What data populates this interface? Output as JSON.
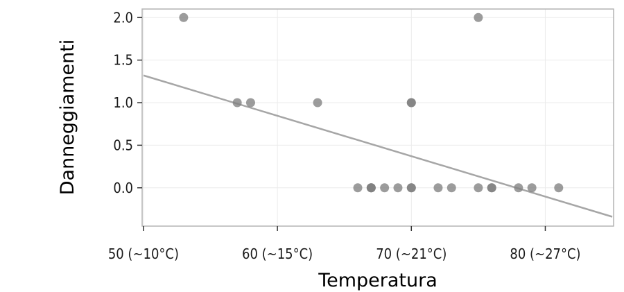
{
  "chart_data": {
    "type": "scatter",
    "xlabel": "Temperatura",
    "ylabel": "Danneggiamenti",
    "xlim": [
      49.9,
      85.1
    ],
    "ylim": [
      -0.45,
      2.1
    ],
    "x_ticks": [
      {
        "value": 50,
        "label": "50 (~10°C)"
      },
      {
        "value": 60,
        "label": "60 (~15°C)"
      },
      {
        "value": 70,
        "label": "70 (~21°C)"
      },
      {
        "value": 80,
        "label": "80 (~27°C)"
      }
    ],
    "y_ticks": [
      {
        "value": 0.0,
        "label": "0.0"
      },
      {
        "value": 0.5,
        "label": "0.5"
      },
      {
        "value": 1.0,
        "label": "1.0"
      },
      {
        "value": 1.5,
        "label": "1.5"
      },
      {
        "value": 2.0,
        "label": "2.0"
      }
    ],
    "points": [
      {
        "x": 53,
        "y": 2
      },
      {
        "x": 57,
        "y": 1
      },
      {
        "x": 58,
        "y": 1
      },
      {
        "x": 63,
        "y": 1
      },
      {
        "x": 66,
        "y": 0
      },
      {
        "x": 67,
        "y": 0
      },
      {
        "x": 67,
        "y": 0
      },
      {
        "x": 67,
        "y": 0
      },
      {
        "x": 68,
        "y": 0
      },
      {
        "x": 69,
        "y": 0
      },
      {
        "x": 70,
        "y": 0
      },
      {
        "x": 70,
        "y": 1
      },
      {
        "x": 70,
        "y": 1
      },
      {
        "x": 70,
        "y": 0
      },
      {
        "x": 72,
        "y": 0
      },
      {
        "x": 73,
        "y": 0
      },
      {
        "x": 75,
        "y": 0
      },
      {
        "x": 75,
        "y": 2
      },
      {
        "x": 76,
        "y": 0
      },
      {
        "x": 76,
        "y": 0
      },
      {
        "x": 78,
        "y": 0
      },
      {
        "x": 79,
        "y": 0
      },
      {
        "x": 81,
        "y": 0
      }
    ],
    "trend_line": {
      "x": [
        50,
        85
      ],
      "y": [
        1.32,
        -0.34
      ]
    },
    "grid": true,
    "colors": {
      "points": "#808080",
      "trend": "#a6a6a6",
      "panel_border": "#b3b3b3",
      "grid": "#ebebeb"
    }
  }
}
